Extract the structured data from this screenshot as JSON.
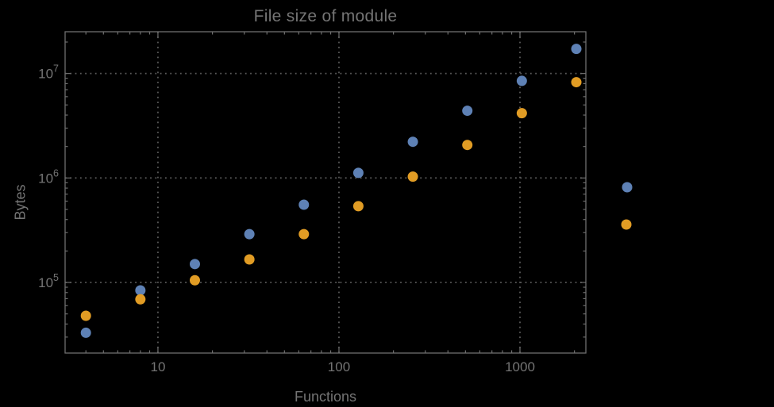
{
  "chart_data": {
    "type": "scatter",
    "title": "File size of module",
    "xlabel": "Functions",
    "ylabel": "Bytes",
    "x_scale": "log",
    "y_scale": "log",
    "xlim": [
      3.07,
      2312
    ],
    "ylim": [
      21100,
      25100000
    ],
    "grid": "dotted",
    "legend_position": "right-outside",
    "x_ticks": [
      {
        "value": 10,
        "label": "10"
      },
      {
        "value": 100,
        "label": "100"
      },
      {
        "value": 1000,
        "label": "1000"
      }
    ],
    "y_ticks": [
      {
        "value": 100000,
        "base": "10",
        "exp": "5"
      },
      {
        "value": 1000000,
        "base": "10",
        "exp": "6"
      },
      {
        "value": 10000000,
        "base": "10",
        "exp": "7"
      }
    ],
    "series": [
      {
        "name": "series-1-blue",
        "color": "#5E81B5",
        "marker": "circle",
        "points": [
          [
            4,
            33000
          ],
          [
            8,
            84000
          ],
          [
            16,
            150000
          ],
          [
            32,
            290000
          ],
          [
            64,
            555000
          ],
          [
            128,
            1120000
          ],
          [
            256,
            2220000
          ],
          [
            512,
            4400000
          ],
          [
            1024,
            8500000
          ],
          [
            2048,
            17200000
          ]
        ]
      },
      {
        "name": "series-2-orange",
        "color": "#E19C24",
        "marker": "circle",
        "points": [
          [
            4,
            48000
          ],
          [
            8,
            69000
          ],
          [
            16,
            105000
          ],
          [
            32,
            166000
          ],
          [
            64,
            290000
          ],
          [
            128,
            537000
          ],
          [
            256,
            1030000
          ],
          [
            512,
            2070000
          ],
          [
            1024,
            4170000
          ],
          [
            2048,
            8260000
          ]
        ]
      }
    ],
    "legend": {
      "labels_visible": false,
      "markers": [
        {
          "name": "legend-marker-series-1",
          "color": "#5E81B5"
        },
        {
          "name": "legend-marker-series-2",
          "color": "#E19C24"
        }
      ]
    }
  },
  "colors": {
    "background": "#000000",
    "frame": "#6E6E6E",
    "grid": "#5A5A5A",
    "text": "#747474"
  }
}
